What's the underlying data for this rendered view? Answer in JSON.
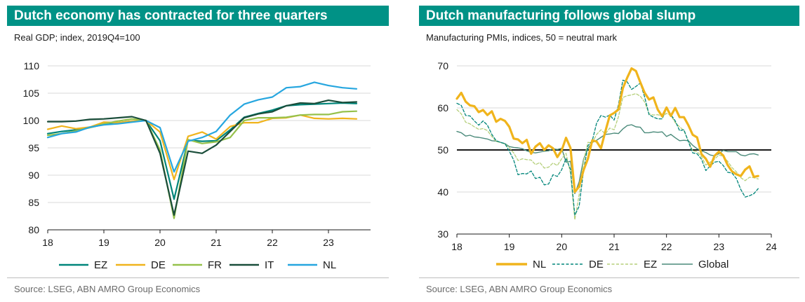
{
  "source": "Source: LSEG, ABN AMRO Group Economics",
  "chart_data": [
    {
      "type": "line",
      "title": "Dutch economy has contracted for three quarters",
      "subtitle": "Real GDP; index, 2019Q4=100",
      "ylim": [
        80,
        110
      ],
      "yticks": [
        80,
        85,
        90,
        95,
        100,
        105,
        110
      ],
      "xlim": [
        2018,
        2023.75
      ],
      "xticks": [
        2018,
        2019,
        2020,
        2021,
        2022,
        2023
      ],
      "xticklabels": [
        "18",
        "19",
        "20",
        "21",
        "22",
        "23"
      ],
      "legend_position": "bottom",
      "x": [
        2018.0,
        2018.25,
        2018.5,
        2018.75,
        2019.0,
        2019.25,
        2019.5,
        2019.75,
        2020.0,
        2020.25,
        2020.5,
        2020.75,
        2021.0,
        2021.25,
        2021.5,
        2021.75,
        2022.0,
        2022.25,
        2022.5,
        2022.75,
        2023.0,
        2023.25,
        2023.5
      ],
      "series": [
        {
          "name": "EZ",
          "color": "#00857a",
          "values": [
            97.6,
            98.0,
            98.3,
            98.7,
            99.3,
            99.6,
            99.9,
            100.0,
            96.3,
            85.6,
            96.4,
            96.2,
            96.3,
            98.3,
            100.6,
            101.3,
            101.9,
            102.7,
            102.9,
            103.0,
            103.1,
            103.2,
            103.1
          ]
        },
        {
          "name": "DE",
          "color": "#f0b41c",
          "values": [
            98.4,
            99.0,
            98.5,
            98.8,
            99.7,
            99.6,
            99.9,
            100.0,
            97.9,
            89.2,
            97.1,
            97.9,
            96.6,
            98.9,
            99.6,
            99.6,
            100.4,
            100.5,
            101.0,
            100.4,
            100.3,
            100.4,
            100.3
          ]
        },
        {
          "name": "FR",
          "color": "#96c14b",
          "values": [
            97.3,
            97.6,
            98.1,
            98.7,
            99.4,
            99.9,
            100.3,
            100.0,
            94.6,
            82.1,
            96.5,
            95.8,
            96.1,
            96.9,
            100.0,
            100.5,
            100.5,
            100.6,
            101.0,
            101.1,
            101.1,
            101.6,
            101.7
          ]
        },
        {
          "name": "IT",
          "color": "#1a4d3a",
          "values": [
            99.8,
            99.8,
            99.9,
            100.2,
            100.3,
            100.5,
            100.7,
            100.0,
            94.0,
            82.7,
            94.4,
            94.0,
            95.5,
            98.0,
            100.5,
            101.2,
            101.6,
            102.7,
            103.2,
            103.1,
            103.7,
            103.3,
            103.4
          ]
        },
        {
          "name": "NL",
          "color": "#26a6df",
          "values": [
            96.9,
            97.6,
            97.9,
            98.8,
            99.2,
            99.4,
            99.7,
            100.0,
            98.7,
            90.6,
            96.2,
            96.9,
            98.0,
            101.0,
            103.0,
            103.8,
            104.3,
            106.0,
            106.2,
            107.0,
            106.4,
            106.0,
            105.8
          ]
        }
      ]
    },
    {
      "type": "line",
      "title": "Dutch manufacturing follows global slump",
      "subtitle": "Manufacturing PMIs, indices, 50 = neutral mark",
      "ylim": [
        30,
        70
      ],
      "yticks": [
        30,
        40,
        50,
        60,
        70
      ],
      "xlim": [
        2018,
        2024
      ],
      "xticks": [
        2018,
        2019,
        2020,
        2021,
        2022,
        2023,
        2024
      ],
      "xticklabels": [
        "18",
        "19",
        "20",
        "21",
        "22",
        "23",
        "24"
      ],
      "reference_line": 50,
      "legend_position": "bottom",
      "x": [
        2018.0,
        2018.083,
        2018.167,
        2018.25,
        2018.333,
        2018.417,
        2018.5,
        2018.583,
        2018.667,
        2018.75,
        2018.833,
        2018.917,
        2019.0,
        2019.083,
        2019.167,
        2019.25,
        2019.333,
        2019.417,
        2019.5,
        2019.583,
        2019.667,
        2019.75,
        2019.833,
        2019.917,
        2020.0,
        2020.083,
        2020.167,
        2020.25,
        2020.333,
        2020.417,
        2020.5,
        2020.583,
        2020.667,
        2020.75,
        2020.833,
        2020.917,
        2021.0,
        2021.083,
        2021.167,
        2021.25,
        2021.333,
        2021.417,
        2021.5,
        2021.583,
        2021.667,
        2021.75,
        2021.833,
        2021.917,
        2022.0,
        2022.083,
        2022.167,
        2022.25,
        2022.333,
        2022.417,
        2022.5,
        2022.583,
        2022.667,
        2022.75,
        2022.833,
        2022.917,
        2023.0,
        2023.083,
        2023.167,
        2023.25,
        2023.333,
        2023.417,
        2023.5,
        2023.583,
        2023.667,
        2023.75
      ],
      "series": [
        {
          "name": "NL",
          "color": "#f0b41c",
          "style": "solid-thick",
          "values": [
            62.2,
            63.6,
            61.5,
            60.6,
            60.4,
            59.0,
            59.5,
            58.3,
            59.2,
            56.7,
            57.4,
            56.9,
            55.5,
            52.7,
            52.5,
            51.6,
            52.4,
            49.1,
            50.8,
            51.6,
            50.0,
            51.1,
            50.4,
            48.3,
            49.9,
            52.9,
            50.5,
            40.0,
            41.3,
            45.2,
            47.9,
            52.3,
            52.0,
            50.4,
            54.4,
            58.2,
            58.8,
            59.6,
            64.7,
            67.2,
            69.4,
            68.8,
            66.1,
            63.6,
            62.0,
            62.5,
            59.6,
            58.0,
            60.1,
            58.1,
            60.0,
            57.8,
            57.8,
            55.9,
            53.6,
            53.0,
            49.0,
            47.9,
            46.0,
            48.6,
            49.6,
            48.7,
            46.4,
            44.9,
            44.2,
            43.8,
            45.3,
            46.1,
            43.6,
            43.8
          ]
        },
        {
          "name": "DE",
          "color": "#00857a",
          "style": "dashed",
          "values": [
            61.1,
            60.6,
            58.2,
            58.1,
            56.9,
            55.9,
            56.9,
            55.9,
            53.7,
            52.2,
            51.8,
            51.5,
            49.7,
            47.6,
            44.1,
            44.4,
            44.3,
            45.0,
            43.2,
            43.5,
            41.7,
            41.9,
            44.1,
            43.7,
            45.3,
            48.0,
            45.4,
            34.5,
            36.6,
            45.2,
            51.0,
            52.2,
            56.4,
            58.2,
            57.8,
            58.3,
            57.1,
            60.7,
            66.6,
            66.2,
            64.4,
            65.1,
            65.9,
            62.6,
            58.4,
            57.8,
            57.4,
            57.4,
            59.8,
            58.4,
            56.9,
            54.6,
            54.8,
            52.0,
            49.3,
            49.1,
            47.8,
            45.1,
            46.2,
            47.1,
            47.3,
            46.3,
            44.7,
            44.5,
            43.2,
            40.6,
            38.8,
            39.1,
            39.6,
            40.8
          ]
        },
        {
          "name": "EZ",
          "color": "#b5cf7a",
          "style": "dashed",
          "values": [
            59.6,
            58.6,
            56.6,
            56.2,
            55.5,
            54.9,
            55.1,
            54.6,
            53.2,
            52.0,
            51.8,
            51.4,
            50.5,
            49.3,
            47.5,
            47.9,
            47.7,
            47.6,
            46.5,
            47.0,
            45.7,
            45.9,
            46.9,
            46.3,
            47.9,
            49.2,
            44.5,
            33.4,
            39.4,
            47.4,
            51.8,
            51.7,
            53.7,
            54.8,
            53.8,
            55.2,
            54.8,
            57.9,
            62.5,
            62.9,
            63.1,
            63.4,
            62.8,
            61.4,
            58.6,
            58.3,
            58.4,
            58.0,
            58.7,
            58.2,
            56.5,
            55.5,
            54.6,
            52.1,
            49.8,
            49.6,
            48.4,
            46.4,
            47.1,
            47.8,
            48.8,
            48.5,
            47.3,
            45.8,
            44.8,
            43.4,
            42.7,
            43.5,
            43.4,
            43.1
          ]
        },
        {
          "name": "Global",
          "color": "#4a8a7a",
          "style": "solid",
          "values": [
            54.4,
            54.1,
            53.3,
            53.5,
            53.1,
            53.0,
            52.8,
            52.6,
            52.2,
            52.1,
            51.8,
            51.5,
            50.8,
            50.6,
            50.5,
            50.3,
            49.8,
            49.4,
            49.3,
            49.5,
            49.7,
            49.8,
            50.3,
            50.1,
            50.4,
            47.1,
            47.3,
            39.6,
            42.4,
            47.8,
            50.3,
            51.8,
            52.3,
            53.0,
            53.7,
            53.8,
            54.0,
            53.9,
            55.0,
            55.8,
            56.0,
            55.5,
            55.4,
            54.1,
            54.1,
            54.3,
            54.2,
            54.3,
            53.2,
            53.7,
            52.9,
            52.2,
            52.3,
            52.2,
            51.1,
            50.3,
            49.8,
            49.4,
            48.8,
            48.6,
            49.1,
            49.9,
            49.6,
            49.6,
            49.6,
            48.8,
            48.6,
            49.0,
            49.1,
            48.8
          ]
        }
      ]
    }
  ]
}
